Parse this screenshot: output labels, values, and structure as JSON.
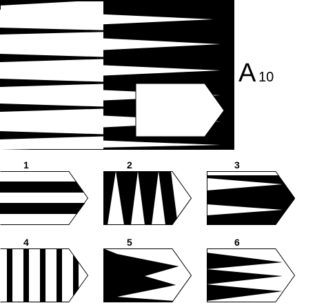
{
  "plate": {
    "letter": "A",
    "number": "10"
  },
  "options": [
    {
      "label": "1"
    },
    {
      "label": "2"
    },
    {
      "label": "3"
    },
    {
      "label": "4"
    },
    {
      "label": "5"
    },
    {
      "label": "6"
    }
  ]
}
